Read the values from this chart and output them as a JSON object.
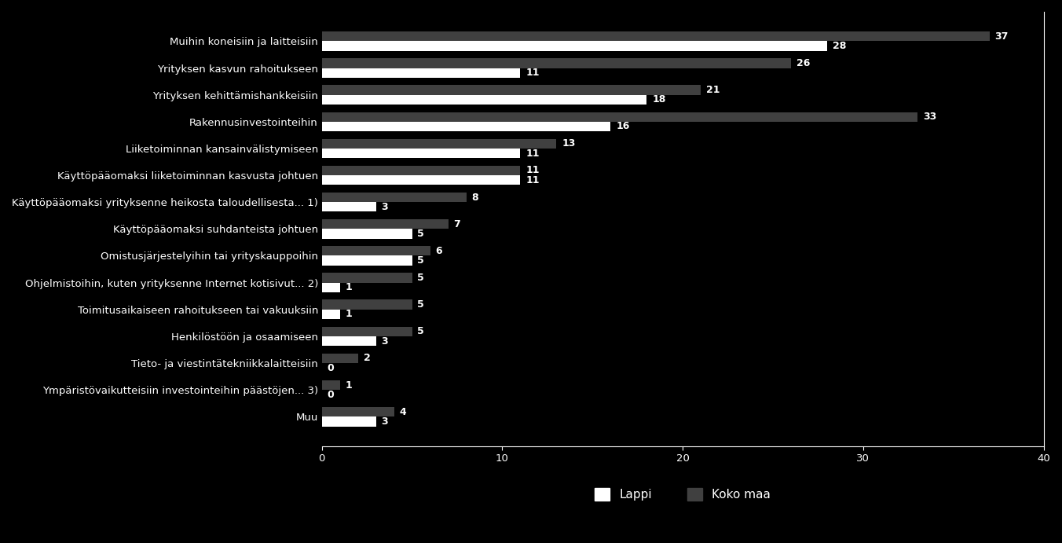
{
  "categories": [
    "Muihin koneisiin ja laitteisiin",
    "Yrityksen kasvun rahoitukseen",
    "Yrityksen kehittämishankkeisiin",
    "Rakennusinvestointeihin",
    "Liiketoiminnan kansainvälistymiseen",
    "Käyttöpääomaksi liiketoiminnan kasvusta johtuen",
    "Käyttöpääomaksi yrityksenne heikosta taloudellisesta... 1)",
    "Käyttöpääomaksi suhdanteista johtuen",
    "Omistusjärjestelyihin tai yrityskauppoihin",
    "Ohjelmistoihin, kuten yrityksenne Internet kotisivut... 2)",
    "Toimitusaikaiseen rahoitukseen tai vakuuksiin",
    "Henkilöstöön ja osaamiseen",
    "Tieto- ja viestintätekniikkalaitteisiin",
    "Ympäristövaikutteisiin investointeihin päästöjen... 3)",
    "Muu"
  ],
  "lappi": [
    28,
    11,
    18,
    16,
    11,
    11,
    3,
    5,
    5,
    1,
    1,
    3,
    0,
    0,
    3
  ],
  "koko_maa": [
    37,
    26,
    21,
    33,
    13,
    11,
    8,
    7,
    6,
    5,
    5,
    5,
    2,
    1,
    4
  ],
  "color_lappi": "#ffffff",
  "color_koko_maa": "#404040",
  "background_color": "#000000",
  "text_color": "#ffffff",
  "bar_height": 0.36,
  "xlim": [
    0,
    40
  ],
  "xticks": [
    0,
    10,
    20,
    30,
    40
  ],
  "legend_lappi": "Lappi",
  "legend_koko_maa": "Koko maa",
  "label_fontsize": 9,
  "tick_fontsize": 9.5,
  "legend_fontsize": 11
}
